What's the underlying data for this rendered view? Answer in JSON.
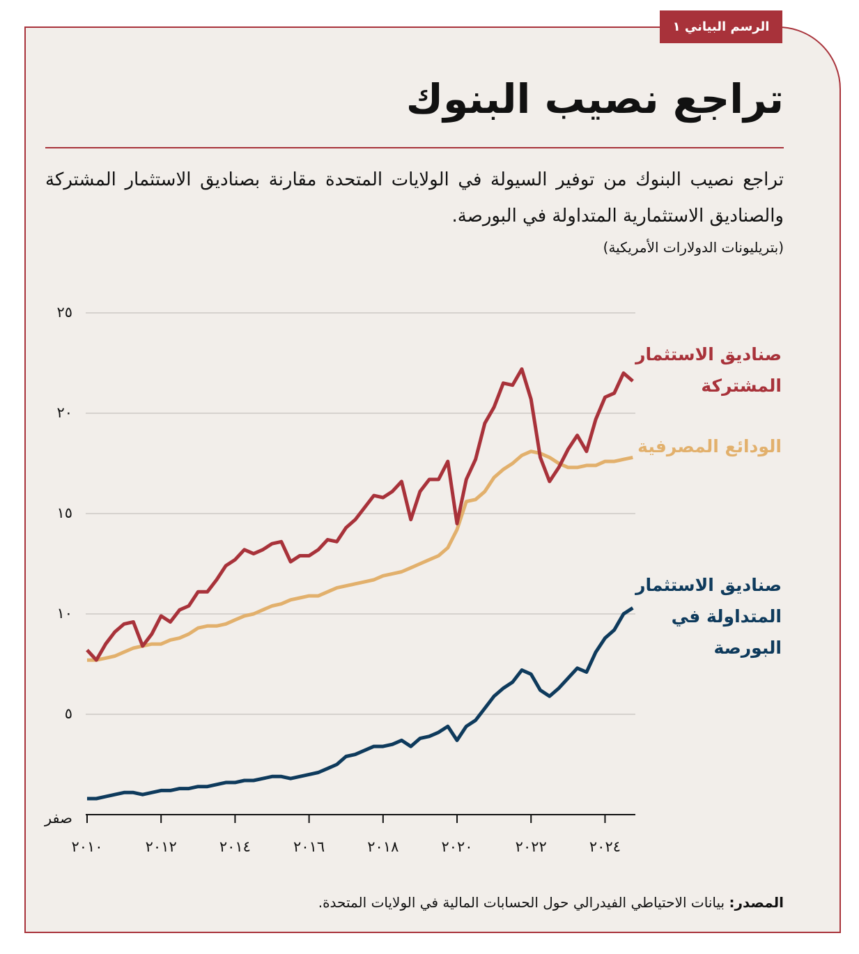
{
  "tag": "الرسم البياني ١",
  "chart_data": {
    "type": "line",
    "title": "تراجع نصيب البنوك",
    "subtitle": "تراجع نصيب البنوك من توفير السيولة في الولايات المتحدة مقارنة بصناديق الاستثمار المشتركة والصناديق الاستثمارية المتداولة في البورصة.",
    "unit": "(بتريليونات الدولارات الأمريكية)",
    "x": [
      2010,
      2010.25,
      2010.5,
      2010.75,
      2011,
      2011.25,
      2011.5,
      2011.75,
      2012,
      2012.25,
      2012.5,
      2012.75,
      2013,
      2013.25,
      2013.5,
      2013.75,
      2014,
      2014.25,
      2014.5,
      2014.75,
      2015,
      2015.25,
      2015.5,
      2015.75,
      2016,
      2016.25,
      2016.5,
      2016.75,
      2017,
      2017.25,
      2017.5,
      2017.75,
      2018,
      2018.25,
      2018.5,
      2018.75,
      2019,
      2019.25,
      2019.5,
      2019.75,
      2020,
      2020.25,
      2020.5,
      2020.75,
      2021,
      2021.25,
      2021.5,
      2021.75,
      2022,
      2022.25,
      2022.5,
      2022.75,
      2023,
      2023.25,
      2023.5,
      2023.75,
      2024,
      2024.25,
      2024.5,
      2024.75
    ],
    "series": [
      {
        "name": "صناديق الاستثمار المشتركة",
        "color": "#a8323a",
        "values": [
          8.2,
          7.7,
          8.5,
          9.1,
          9.5,
          9.6,
          8.4,
          9.0,
          9.9,
          9.6,
          10.2,
          10.4,
          11.1,
          11.1,
          11.7,
          12.4,
          12.7,
          13.2,
          13.0,
          13.2,
          13.5,
          13.6,
          12.6,
          12.9,
          12.9,
          13.2,
          13.7,
          13.6,
          14.3,
          14.7,
          15.3,
          15.9,
          15.8,
          16.1,
          16.6,
          14.7,
          16.1,
          16.7,
          16.7,
          17.6,
          14.5,
          16.7,
          17.7,
          19.5,
          20.3,
          21.5,
          21.4,
          22.2,
          20.7,
          17.8,
          16.6,
          17.3,
          18.2,
          18.9,
          18.1,
          19.7,
          20.8,
          21.0,
          22.0,
          21.6
        ]
      },
      {
        "name": "الودائع المصرفية",
        "color": "#e2b06c",
        "values": [
          7.7,
          7.7,
          7.8,
          7.9,
          8.1,
          8.3,
          8.4,
          8.5,
          8.5,
          8.7,
          8.8,
          9.0,
          9.3,
          9.4,
          9.4,
          9.5,
          9.7,
          9.9,
          10.0,
          10.2,
          10.4,
          10.5,
          10.7,
          10.8,
          10.9,
          10.9,
          11.1,
          11.3,
          11.4,
          11.5,
          11.6,
          11.7,
          11.9,
          12.0,
          12.1,
          12.3,
          12.5,
          12.7,
          12.9,
          13.3,
          14.2,
          15.6,
          15.7,
          16.1,
          16.8,
          17.2,
          17.5,
          17.9,
          18.1,
          18.0,
          17.8,
          17.5,
          17.3,
          17.3,
          17.4,
          17.4,
          17.6,
          17.6,
          17.7,
          17.8
        ]
      },
      {
        "name": "صناديق الاستثمار المتداولة في البورصة",
        "color": "#0e3a5c",
        "values": [
          0.8,
          0.8,
          0.9,
          1.0,
          1.1,
          1.1,
          1.0,
          1.1,
          1.2,
          1.2,
          1.3,
          1.3,
          1.4,
          1.4,
          1.5,
          1.6,
          1.6,
          1.7,
          1.7,
          1.8,
          1.9,
          1.9,
          1.8,
          1.9,
          2.0,
          2.1,
          2.3,
          2.5,
          2.9,
          3.0,
          3.2,
          3.4,
          3.4,
          3.5,
          3.7,
          3.4,
          3.8,
          3.9,
          4.1,
          4.4,
          3.7,
          4.4,
          4.7,
          5.3,
          5.9,
          6.3,
          6.6,
          7.2,
          7.0,
          6.2,
          5.9,
          6.3,
          6.8,
          7.3,
          7.1,
          8.1,
          8.8,
          9.2,
          10.0,
          10.3
        ]
      }
    ],
    "xlim": [
      2010,
      2024.82
    ],
    "xticks": [
      {
        "value": 2010,
        "label": "٢٠١٠"
      },
      {
        "value": 2012,
        "label": "٢٠١٢"
      },
      {
        "value": 2014,
        "label": "٢٠١٤"
      },
      {
        "value": 2016,
        "label": "٢٠١٦"
      },
      {
        "value": 2018,
        "label": "٢٠١٨"
      },
      {
        "value": 2020,
        "label": "٢٠٢٠"
      },
      {
        "value": 2022,
        "label": "٢٠٢٢"
      },
      {
        "value": 2024,
        "label": "٢٠٢٤"
      }
    ],
    "ylim": [
      0,
      25
    ],
    "yticks": [
      {
        "value": 0,
        "label": "صفر"
      },
      {
        "value": 5,
        "label": "٥"
      },
      {
        "value": 10,
        "label": "١٠"
      },
      {
        "value": 15,
        "label": "١٥"
      },
      {
        "value": 20,
        "label": "٢٠"
      },
      {
        "value": 25,
        "label": "٢٥"
      }
    ],
    "grid": true,
    "source_label": "المصدر:",
    "source_text": "بيانات الاحتياطي الفيدرالي حول الحسابات المالية في الولايات المتحدة."
  }
}
